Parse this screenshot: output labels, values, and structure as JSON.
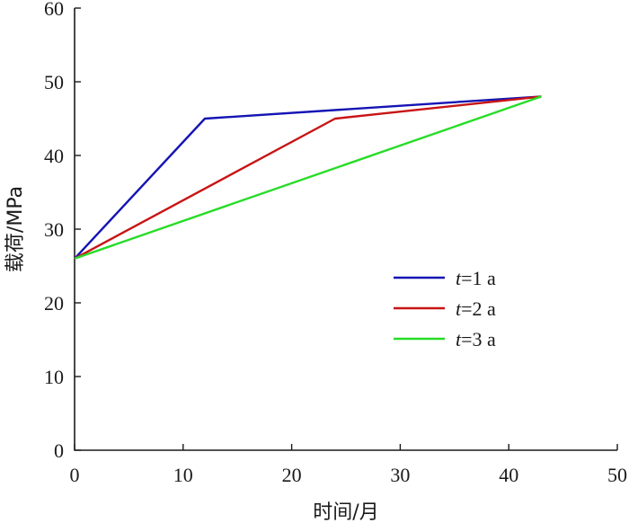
{
  "chart_data": {
    "type": "line",
    "title": "",
    "xlabel": "时间/月",
    "ylabel": "载荷/MPa",
    "xlim": [
      0,
      50
    ],
    "ylim": [
      0,
      60
    ],
    "x_ticks": [
      0,
      10,
      20,
      30,
      40,
      50
    ],
    "y_ticks": [
      0,
      10,
      20,
      30,
      40,
      50,
      60
    ],
    "grid": false,
    "legend_position": "right-middle",
    "series": [
      {
        "name_var": "t",
        "name_rest": "=1 a",
        "color": "#1414b4",
        "x": [
          0,
          12,
          43
        ],
        "y": [
          26,
          45,
          48
        ]
      },
      {
        "name_var": "t",
        "name_rest": "=2 a",
        "color": "#c81414",
        "x": [
          0,
          24,
          43
        ],
        "y": [
          26,
          45,
          48
        ]
      },
      {
        "name_var": "t",
        "name_rest": "=3 a",
        "color": "#28dc28",
        "x": [
          0,
          43
        ],
        "y": [
          26,
          48
        ]
      }
    ]
  }
}
